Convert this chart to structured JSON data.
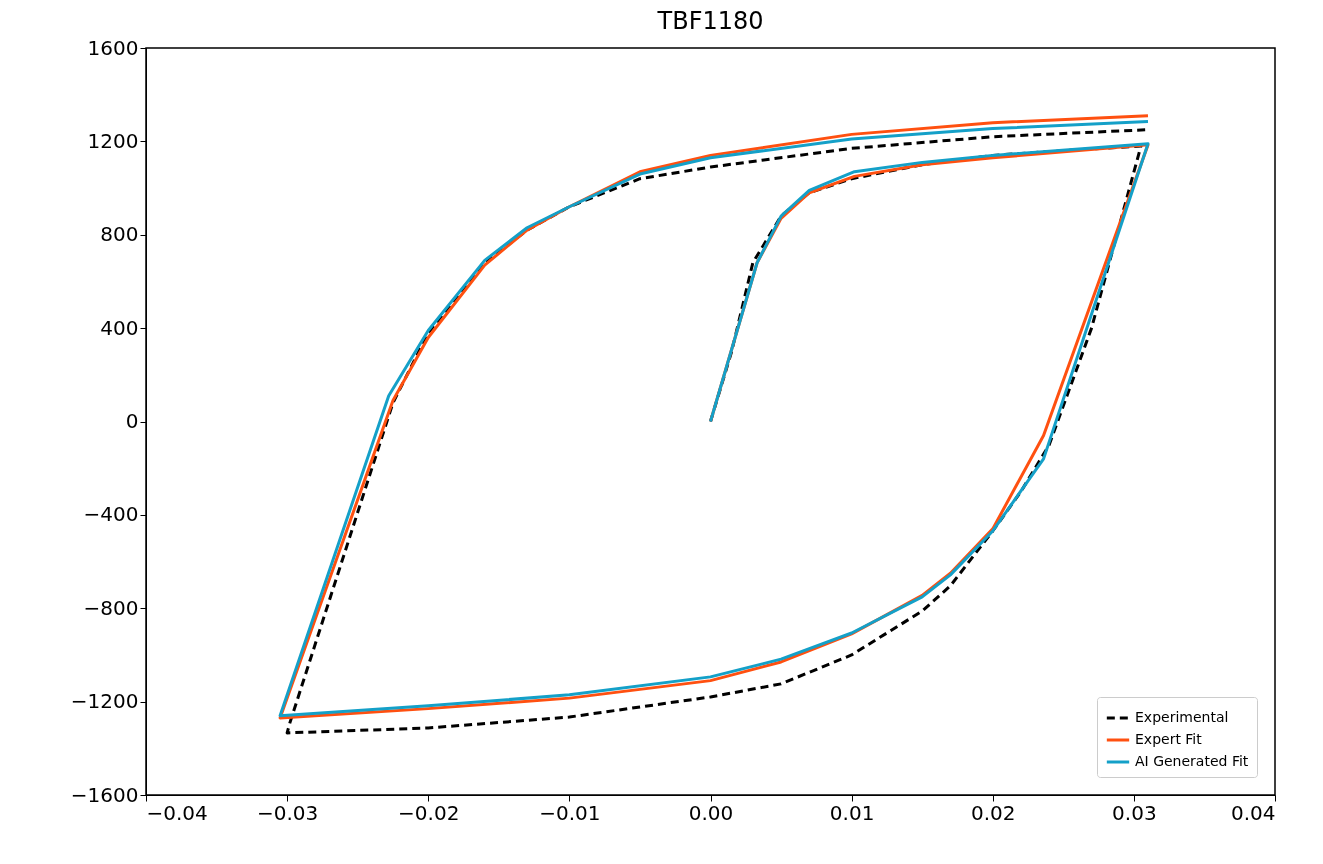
{
  "chart_data": {
    "type": "line",
    "title": "TBF1180",
    "legend": "bottom right",
    "grid": false,
    "marker": "none",
    "xlim": [
      -0.04,
      0.04
    ],
    "xticks": [
      {
        "value": -0.04,
        "label": "−0.04"
      },
      {
        "value": -0.03,
        "label": "−0.03"
      },
      {
        "value": -0.02,
        "label": "−0.02"
      },
      {
        "value": -0.01,
        "label": "−0.01"
      },
      {
        "value": 0,
        "label": "0.00"
      },
      {
        "value": 0.01,
        "label": "0.01"
      },
      {
        "value": 0.02,
        "label": "0.02"
      },
      {
        "value": 0.03,
        "label": "0.03"
      },
      {
        "value": 0.04,
        "label": "0.04"
      }
    ],
    "ylim": [
      -1600,
      1600
    ],
    "yticks": [
      {
        "value": -1600,
        "label": "−1600"
      },
      {
        "value": -1200,
        "label": "−1200"
      },
      {
        "value": -800,
        "label": "−800"
      },
      {
        "value": -400,
        "label": "−400"
      },
      0,
      400,
      800,
      1200,
      1600
    ],
    "series": [
      {
        "name": "Experimental",
        "color": "#000000",
        "line_style": "dashed",
        "x": [
          0,
          0.0015,
          0.003,
          0.005,
          0.007,
          0.01,
          0.015,
          0.02,
          0.025,
          0.0305,
          0.027,
          0.024,
          0.022,
          0.02,
          0.017,
          0.015,
          0.01,
          0.005,
          0,
          -0.01,
          -0.02,
          -0.03,
          -0.0298,
          -0.0225,
          -0.02,
          -0.016,
          -0.013,
          -0.01,
          -0.005,
          0,
          0.01,
          0.02,
          0.031
        ],
        "values": [
          0,
          300,
          680,
          880,
          980,
          1040,
          1100,
          1140,
          1160,
          1180,
          400,
          -100,
          -300,
          -469,
          -704,
          -812,
          -1000,
          -1124,
          -1180,
          -1266,
          -1313,
          -1334,
          -1290,
          80,
          380,
          680,
          820,
          920,
          1040,
          1090,
          1170,
          1220,
          1250
        ]
      },
      {
        "name": "Expert Fit",
        "color": "#ff5010",
        "line_style": "solid",
        "x": [
          0,
          0.0033,
          0.005,
          0.007,
          0.0102,
          0.015,
          0.02,
          0.031,
          0.0236,
          0.02,
          0.017,
          0.015,
          0.01,
          0.005,
          0,
          -0.01,
          -0.02,
          -0.0305,
          -0.0225,
          -0.02,
          -0.016,
          -0.013,
          -0.01,
          -0.005,
          0,
          0.01,
          0.02,
          0.031
        ],
        "values": [
          0,
          680,
          870,
          980,
          1050,
          1100,
          1130,
          1185,
          -60,
          -460,
          -650,
          -745,
          -910,
          -1030,
          -1110,
          -1185,
          -1230,
          -1270,
          90,
          360,
          670,
          820,
          920,
          1070,
          1140,
          1230,
          1280,
          1310
        ]
      },
      {
        "name": "AI Generated Fit",
        "color": "#14a0c8",
        "line_style": "solid",
        "x": [
          0,
          0.0033,
          0.005,
          0.007,
          0.0102,
          0.015,
          0.02,
          0.031,
          0.0236,
          0.02,
          0.017,
          0.015,
          0.01,
          0.005,
          0,
          -0.01,
          -0.02,
          -0.0305,
          -0.0228,
          -0.02,
          -0.016,
          -0.013,
          -0.01,
          -0.005,
          0,
          0.01,
          0.02,
          0.031
        ],
        "values": [
          0,
          680,
          880,
          990,
          1070,
          1110,
          1140,
          1190,
          -160,
          -469,
          -657,
          -751,
          -906,
          -1018,
          -1094,
          -1171,
          -1218,
          -1260,
          110,
          390,
          690,
          830,
          920,
          1060,
          1130,
          1210,
          1255,
          1285
        ]
      }
    ]
  }
}
